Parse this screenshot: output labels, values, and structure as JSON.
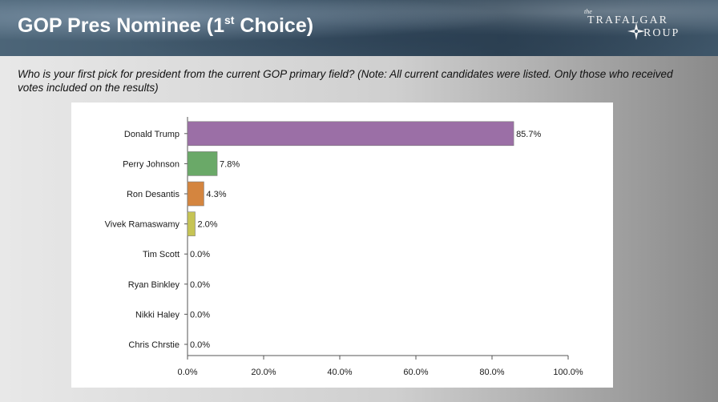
{
  "header": {
    "title": "GOP Pres Nominee (1",
    "title_sup": "st",
    "title_end": " Choice)",
    "logo_the": "the",
    "logo_line1": "TRAFALGAR",
    "logo_line2": "ROUP"
  },
  "question": "Who is your first pick for president from the current GOP primary field? (Note: All current candidates were listed. Only those who received votes included on the results)",
  "chart_data": {
    "type": "bar",
    "orientation": "horizontal",
    "categories": [
      "Donald Trump",
      "Perry Johnson",
      "Ron Desantis",
      "Vivek Ramaswamy",
      "Tim Scott",
      "Ryan Binkley",
      "Nikki Haley",
      "Chris Chrstie"
    ],
    "values": [
      85.7,
      7.8,
      4.3,
      2.0,
      0.0,
      0.0,
      0.0,
      0.0
    ],
    "value_labels": [
      "85.7%",
      "7.8%",
      "4.3%",
      "2.0%",
      "0.0%",
      "0.0%",
      "0.0%",
      "0.0%"
    ],
    "colors": [
      "#9b6fa6",
      "#6aa968",
      "#d4853f",
      "#c6c454",
      "#888888",
      "#888888",
      "#888888",
      "#888888"
    ],
    "xlim": [
      0,
      100
    ],
    "xticks": [
      0,
      20,
      40,
      60,
      80,
      100
    ],
    "xtick_labels": [
      "0.0%",
      "20.0%",
      "40.0%",
      "60.0%",
      "80.0%",
      "100.0%"
    ],
    "grid": false,
    "legend": "none"
  }
}
